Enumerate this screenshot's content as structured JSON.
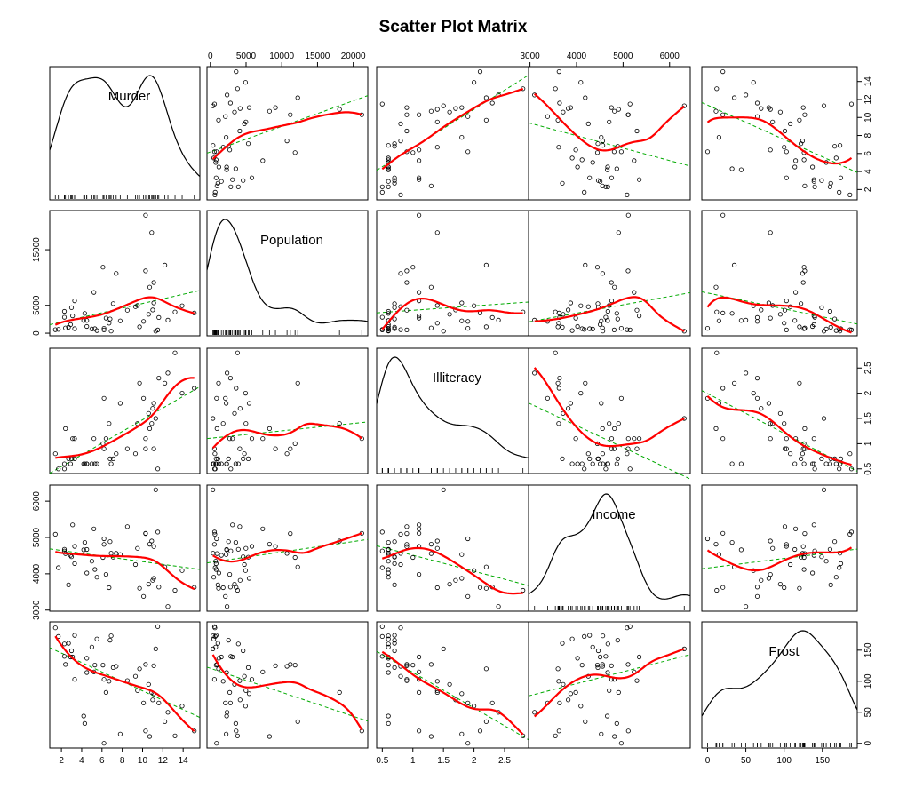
{
  "chart_data": {
    "type": "scatter",
    "title": "Scatter Plot Matrix",
    "variables": [
      "Murder",
      "Population",
      "Illiteracy",
      "Income",
      "Frost"
    ],
    "ranges": {
      "Murder": [
        1.4,
        15.1
      ],
      "Population": [
        365,
        21198
      ],
      "Illiteracy": [
        0.5,
        2.8
      ],
      "Income": [
        3098,
        6315
      ],
      "Frost": [
        0,
        188
      ]
    },
    "ticks": {
      "Murder": [
        2,
        4,
        6,
        8,
        10,
        12,
        14
      ],
      "Population": [
        0,
        5000,
        10000,
        15000,
        20000
      ],
      "Population_left": [
        0,
        5000,
        15000
      ],
      "Illiteracy": [
        0.5,
        1.0,
        1.5,
        2.0,
        2.5
      ],
      "Income": [
        3000,
        4000,
        5000,
        6000
      ],
      "Frost": [
        0,
        50,
        100,
        150
      ]
    },
    "data": {
      "Murder": [
        15.1,
        11.3,
        7.8,
        10.1,
        10.3,
        6.8,
        3.1,
        6.2,
        10.7,
        13.9,
        6.2,
        5.3,
        10.3,
        7.1,
        2.3,
        4.5,
        10.6,
        13.2,
        2.7,
        8.5,
        3.3,
        11.1,
        2.3,
        12.5,
        9.3,
        5.0,
        2.9,
        11.5,
        3.3,
        5.2,
        9.7,
        10.9,
        11.1,
        1.4,
        7.4,
        6.4,
        4.2,
        6.1,
        2.4,
        11.6,
        1.7,
        11.0,
        12.2,
        4.5,
        5.5,
        9.5,
        4.3,
        6.7,
        3.0,
        6.9
      ],
      "Population": [
        3615,
        365,
        2212,
        2110,
        21198,
        2541,
        3100,
        579,
        8277,
        4931,
        868,
        813,
        11197,
        5313,
        2861,
        2280,
        3387,
        3806,
        1058,
        4122,
        5814,
        9111,
        3921,
        2341,
        4767,
        746,
        1544,
        590,
        812,
        7333,
        1144,
        18076,
        5441,
        637,
        10735,
        2715,
        2284,
        11860,
        931,
        2816,
        681,
        4173,
        12237,
        1203,
        472,
        4981,
        3559,
        1799,
        4589,
        376
      ],
      "Illiteracy": [
        2.1,
        1.5,
        1.8,
        1.9,
        1.1,
        0.7,
        1.1,
        0.9,
        1.3,
        2.0,
        1.9,
        0.6,
        0.9,
        0.7,
        0.5,
        0.6,
        1.6,
        2.8,
        0.7,
        0.9,
        1.1,
        0.9,
        0.6,
        2.4,
        0.8,
        0.6,
        0.6,
        0.5,
        0.7,
        1.1,
        2.2,
        1.4,
        1.8,
        0.8,
        0.8,
        1.1,
        0.6,
        1.0,
        1.3,
        2.3,
        0.5,
        1.7,
        2.2,
        0.6,
        0.6,
        1.4,
        0.6,
        1.4,
        0.7,
        0.6
      ],
      "Income": [
        3624,
        6315,
        4530,
        3378,
        5114,
        4884,
        5348,
        4809,
        4815,
        4091,
        4963,
        4119,
        5107,
        4458,
        4628,
        4669,
        3712,
        3545,
        3694,
        5299,
        4755,
        4751,
        4675,
        3098,
        4254,
        4347,
        4508,
        5149,
        4281,
        5237,
        3601,
        4903,
        3875,
        5087,
        4561,
        3983,
        4660,
        4449,
        4558,
        3635,
        4167,
        3821,
        4188,
        4022,
        3907,
        4701,
        4864,
        3617,
        4468,
        4566
      ],
      "Frost": [
        20,
        152,
        15,
        65,
        20,
        166,
        139,
        103,
        11,
        60,
        0,
        126,
        127,
        122,
        140,
        114,
        95,
        12,
        161,
        101,
        103,
        125,
        160,
        50,
        108,
        155,
        139,
        188,
        174,
        115,
        120,
        82,
        80,
        186,
        124,
        82,
        44,
        126,
        127,
        65,
        172,
        70,
        35,
        137,
        168,
        85,
        32,
        100,
        149,
        173
      ]
    },
    "smoother": "loess",
    "fit_line": "linear",
    "diagonal": "density",
    "colors": {
      "loess": "#ff0000",
      "linear": "#00aa00",
      "points": "#000000"
    }
  }
}
